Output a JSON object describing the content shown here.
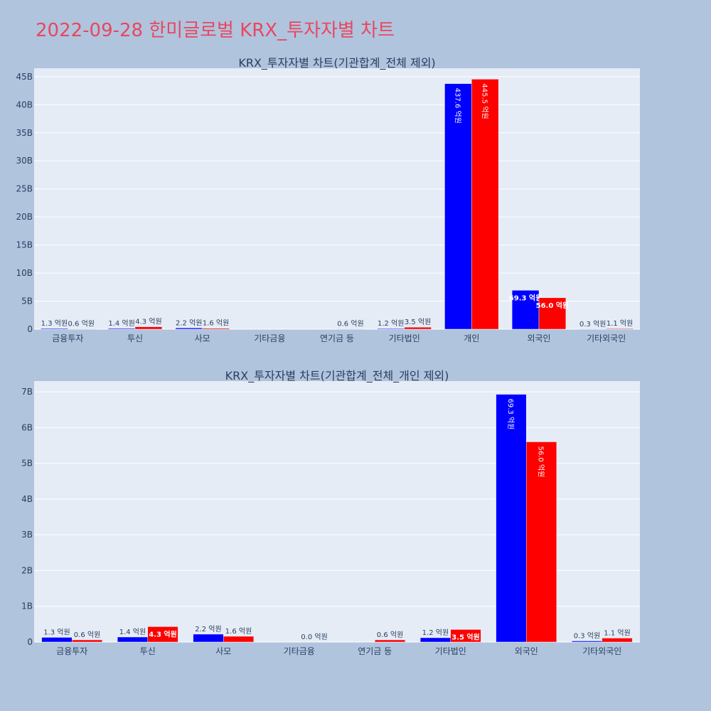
{
  "page_title": "2022-09-28 한미글로벌 KRX_투자자별 차트",
  "colors": {
    "series1": "#0000ff",
    "series2": "#ff0000",
    "title": "#e8475f"
  },
  "chart_data": [
    {
      "type": "bar",
      "title": "KRX_투자자별 차트(기관합계_전체 제외)",
      "categories": [
        "금융투자",
        "투신",
        "사모",
        "기타금융",
        "연기금 등",
        "기타법인",
        "개인",
        "외국인",
        "기타외국인"
      ],
      "ylim": [
        0,
        46.5
      ],
      "yticks": [
        0,
        5,
        10,
        15,
        20,
        25,
        30,
        35,
        40,
        45
      ],
      "ytick_labels": [
        "0",
        "5B",
        "10B",
        "15B",
        "20B",
        "25B",
        "30B",
        "35B",
        "40B",
        "45B"
      ],
      "grid": true,
      "series": [
        {
          "values": [
            0.13,
            0.14,
            0.22,
            0,
            0,
            0.12,
            43.76,
            6.93,
            0.03
          ],
          "labels": [
            "1.3 억원",
            "1.4 억원",
            "2.2 억원",
            "",
            "",
            "1.2 억원",
            "437.6 억원",
            "69.3 억원",
            "0.3 억원"
          ]
        },
        {
          "values": [
            0.06,
            0.43,
            0.16,
            0,
            0.06,
            0.35,
            44.55,
            5.6,
            0.11
          ],
          "labels": [
            "0.6 억원",
            "4.3 억원",
            "1.6 억원",
            "",
            "0.6 억원",
            "3.5 억원",
            "445.5 억원",
            "56.0 억원",
            "1.1 억원"
          ]
        }
      ]
    },
    {
      "type": "bar",
      "title": "KRX_투자자별 차트(기관합계_전체_개인 제외)",
      "categories": [
        "금융투자",
        "투신",
        "사모",
        "기타금융",
        "연기금 등",
        "기타법인",
        "외국인",
        "기타외국인"
      ],
      "ylim": [
        0,
        7.3
      ],
      "yticks": [
        0,
        1,
        2,
        3,
        4,
        5,
        6,
        7
      ],
      "ytick_labels": [
        "0",
        "1B",
        "2B",
        "3B",
        "4B",
        "5B",
        "6B",
        "7B"
      ],
      "grid": true,
      "series": [
        {
          "values": [
            0.13,
            0.14,
            0.22,
            0,
            0,
            0.12,
            6.93,
            0.03
          ],
          "labels": [
            "1.3 억원",
            "1.4 억원",
            "2.2 억원",
            "",
            "",
            "1.2 억원",
            "69.3 억원",
            "0.3 억원"
          ]
        },
        {
          "values": [
            0.06,
            0.43,
            0.16,
            0.0,
            0.06,
            0.35,
            5.6,
            0.11
          ],
          "labels": [
            "0.6 억원",
            "4.3 억원",
            "1.6 억원",
            "0.0 억원",
            "0.6 억원",
            "3.5 억원",
            "56.0 억원",
            "1.1 억원"
          ]
        }
      ]
    }
  ]
}
